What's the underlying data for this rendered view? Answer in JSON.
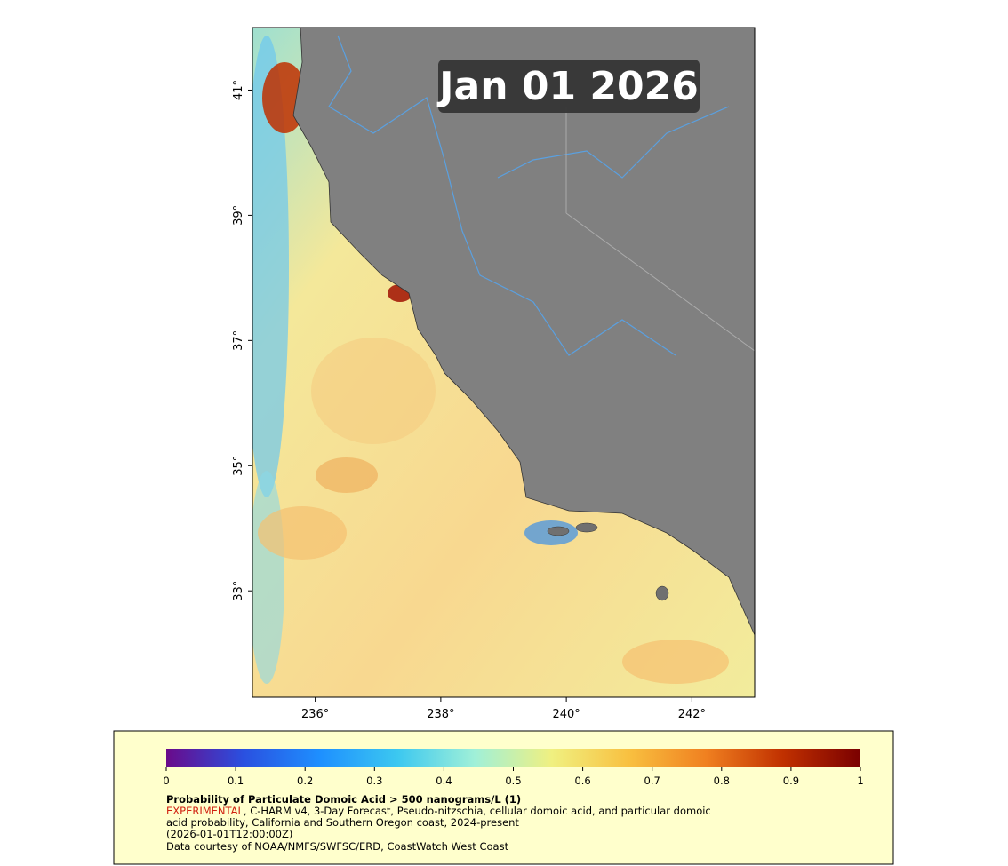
{
  "date_label": "Jan 01 2026",
  "map": {
    "lonlim": [
      235,
      243
    ],
    "latlim": [
      31.3,
      42
    ],
    "lat_ticks": [
      {
        "value": 41,
        "label": "41°"
      },
      {
        "value": 39,
        "label": "39°"
      },
      {
        "value": 37,
        "label": "37°"
      },
      {
        "value": 35,
        "label": "35°"
      },
      {
        "value": 33,
        "label": "33°"
      }
    ],
    "lon_ticks": [
      {
        "value": 236,
        "label": "236°"
      },
      {
        "value": 238,
        "label": "238°"
      },
      {
        "value": 240,
        "label": "240°"
      },
      {
        "value": 242,
        "label": "242°"
      }
    ]
  },
  "legend": {
    "colorbar": {
      "range": [
        0,
        1
      ],
      "ticks": [
        0,
        0.1,
        0.2,
        0.3,
        0.4,
        0.5,
        0.6,
        0.7,
        0.8,
        0.9,
        1
      ],
      "colors": [
        "#6a0a8a",
        "#2a50e0",
        "#1e90ff",
        "#3cc8f0",
        "#a0f0d8",
        "#f0f080",
        "#f8c040",
        "#f08020",
        "#c03000",
        "#7a0000"
      ]
    },
    "title": "Probability of Particulate Domoic Acid > 500 nanograms/L (1)",
    "experimental": "EXPERIMENTAL",
    "description": [
      ", C-HARM v4, 3-Day Forecast, Pseudo-nitzschia, cellular domoic acid, and particular domoic",
      "acid probability, California and Southern Oregon coast, 2024-present"
    ],
    "time": "(2026-01-01T12:00:00Z)",
    "credit": "Data courtesy of NOAA/NMFS/SWFSC/ERD, CoastWatch West Coast"
  }
}
